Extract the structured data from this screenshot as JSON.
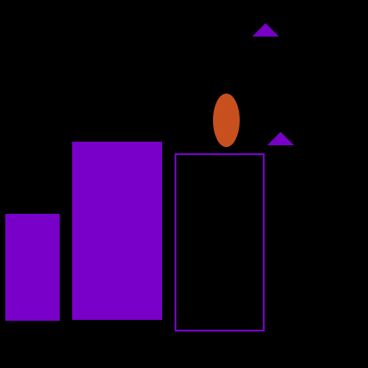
{
  "scene": {
    "background": "#000000",
    "shapes": [
      {
        "name": "short-filled-rectangle",
        "kind": "rectangle",
        "fill": "#7800c8",
        "filled": true
      },
      {
        "name": "tall-filled-rectangle",
        "kind": "rectangle",
        "fill": "#7800c8",
        "filled": true
      },
      {
        "name": "outlined-rectangle",
        "kind": "rectangle",
        "stroke": "#7800c8",
        "filled": false
      },
      {
        "name": "orange-ellipse",
        "kind": "ellipse",
        "fill": "#c8501e",
        "filled": true
      },
      {
        "name": "upper-triangle",
        "kind": "triangle",
        "fill": "#7800c8",
        "filled": true
      },
      {
        "name": "lower-triangle",
        "kind": "triangle",
        "fill": "#7800c8",
        "filled": true
      }
    ]
  }
}
